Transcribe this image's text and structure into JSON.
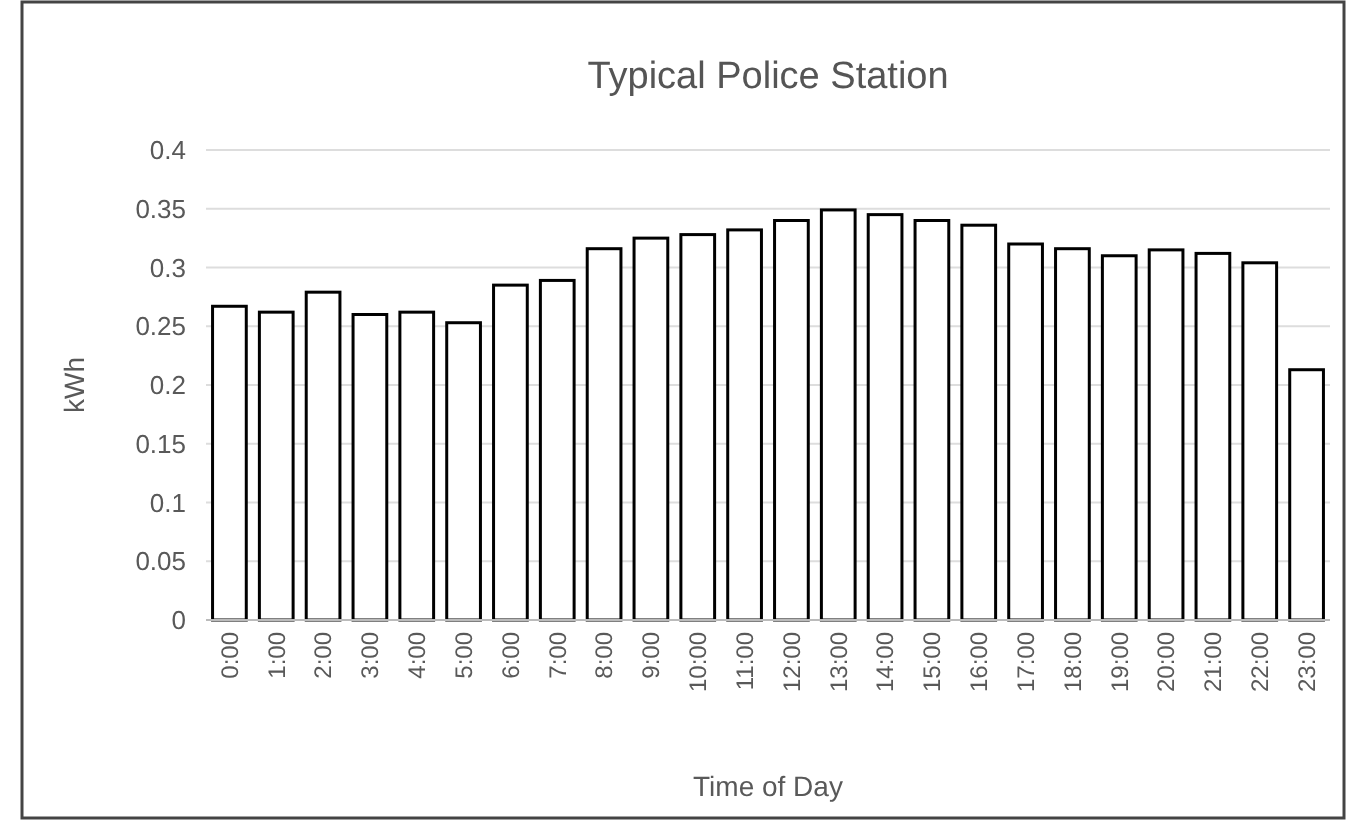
{
  "chart_data": {
    "type": "bar",
    "title": "Typical Police Station",
    "xlabel": "Time of Day",
    "ylabel": "kWh",
    "categories": [
      "0:00",
      "1:00",
      "2:00",
      "3:00",
      "4:00",
      "5:00",
      "6:00",
      "7:00",
      "8:00",
      "9:00",
      "10:00",
      "11:00",
      "12:00",
      "13:00",
      "14:00",
      "15:00",
      "16:00",
      "17:00",
      "18:00",
      "19:00",
      "20:00",
      "21:00",
      "22:00",
      "23:00"
    ],
    "values": [
      0.267,
      0.262,
      0.279,
      0.26,
      0.262,
      0.253,
      0.285,
      0.289,
      0.316,
      0.325,
      0.328,
      0.332,
      0.34,
      0.349,
      0.345,
      0.34,
      0.336,
      0.32,
      0.316,
      0.31,
      0.315,
      0.312,
      0.304,
      0.213
    ],
    "color": "#ffffff",
    "ylim": [
      0,
      0.4
    ],
    "yticks": [
      0,
      0.05,
      0.1,
      0.15,
      0.2,
      0.25,
      0.3,
      0.35,
      0.4
    ],
    "grid": "y"
  }
}
